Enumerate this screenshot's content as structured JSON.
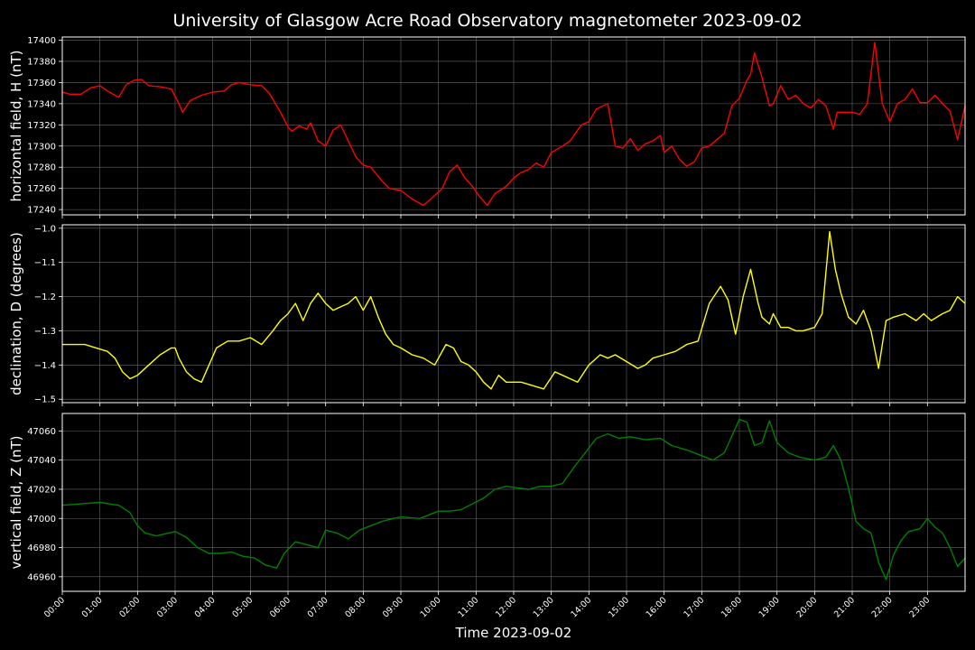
{
  "chart_data": {
    "title": "University of Glasgow Acre Road Observatory magnetometer 2023-09-02",
    "xlabel": "Time 2023-09-02",
    "x_tick_labels": [
      "00:00",
      "01:00",
      "02:00",
      "03:00",
      "04:00",
      "05:00",
      "06:00",
      "07:00",
      "08:00",
      "09:00",
      "10:00",
      "11:00",
      "12:00",
      "13:00",
      "14:00",
      "15:00",
      "16:00",
      "17:00",
      "18:00",
      "19:00",
      "20:00",
      "21:00",
      "22:00",
      "23:00"
    ],
    "x_unit": "hours",
    "xlim": [
      0,
      24
    ],
    "grid": true,
    "background": "#000000",
    "grid_color": "#666666",
    "panels": [
      {
        "type": "line",
        "ylabel": "horizontal field, H (nT)",
        "color": "#ff0000",
        "ylim": [
          17235,
          17403
        ],
        "yticks": [
          17240,
          17260,
          17280,
          17300,
          17320,
          17340,
          17360,
          17380,
          17400
        ],
        "x": [
          0,
          0.2,
          0.5,
          0.75,
          1.0,
          1.2,
          1.5,
          1.7,
          1.9,
          2.1,
          2.3,
          2.6,
          2.9,
          3.1,
          3.2,
          3.4,
          3.7,
          4.0,
          4.3,
          4.5,
          4.7,
          5.0,
          5.3,
          5.5,
          5.8,
          6.0,
          6.1,
          6.3,
          6.5,
          6.6,
          6.8,
          7.0,
          7.2,
          7.4,
          7.6,
          7.8,
          8.0,
          8.2,
          8.5,
          8.7,
          9.0,
          9.3,
          9.6,
          9.8,
          10.1,
          10.3,
          10.5,
          10.7,
          10.9,
          11.1,
          11.3,
          11.5,
          11.8,
          12.0,
          12.2,
          12.4,
          12.6,
          12.8,
          13.0,
          13.3,
          13.5,
          13.8,
          14.0,
          14.2,
          14.5,
          14.7,
          14.9,
          15.1,
          15.3,
          15.5,
          15.7,
          15.9,
          16.0,
          16.2,
          16.4,
          16.6,
          16.8,
          17.0,
          17.2,
          17.4,
          17.6,
          17.8,
          18.0,
          18.2,
          18.3,
          18.4,
          18.6,
          18.8,
          18.9,
          19.1,
          19.3,
          19.5,
          19.7,
          19.9,
          20.1,
          20.3,
          20.5,
          20.6,
          20.8,
          21.0,
          21.2,
          21.4,
          21.6,
          21.8,
          22.0,
          22.2,
          22.4,
          22.6,
          22.8,
          23.0,
          23.2,
          23.4,
          23.6,
          23.8,
          24.0
        ],
        "y": [
          17351,
          17349,
          17349,
          17355,
          17357,
          17352,
          17346,
          17358,
          17362,
          17363,
          17357,
          17356,
          17354,
          17340,
          17332,
          17343,
          17348,
          17351,
          17352,
          17358,
          17360,
          17358,
          17357,
          17350,
          17332,
          17318,
          17314,
          17319,
          17316,
          17322,
          17305,
          17300,
          17315,
          17320,
          17305,
          17290,
          17282,
          17280,
          17267,
          17260,
          17258,
          17250,
          17244,
          17250,
          17260,
          17276,
          17282,
          17270,
          17262,
          17252,
          17244,
          17255,
          17262,
          17270,
          17275,
          17278,
          17284,
          17280,
          17294,
          17300,
          17305,
          17320,
          17323,
          17335,
          17340,
          17300,
          17298,
          17307,
          17296,
          17302,
          17305,
          17310,
          17294,
          17300,
          17288,
          17281,
          17285,
          17298,
          17300,
          17306,
          17312,
          17338,
          17345,
          17362,
          17368,
          17388,
          17365,
          17338,
          17340,
          17357,
          17344,
          17348,
          17340,
          17336,
          17344,
          17338,
          17316,
          17332,
          17332,
          17332,
          17330,
          17340,
          17398,
          17340,
          17323,
          17340,
          17344,
          17354,
          17341,
          17341,
          17348,
          17340,
          17333,
          17306,
          17338
        ]
      },
      {
        "type": "line",
        "ylabel": "declination, D (degrees)",
        "color": "#ffff00",
        "ylim": [
          -1.51,
          -0.99
        ],
        "yticks": [
          -1.5,
          -1.4,
          -1.3,
          -1.2,
          -1.1,
          -1.0
        ],
        "ytick_labels": [
          "−1.5",
          "−1.4",
          "−1.3",
          "−1.2",
          "−1.1",
          "−1.0"
        ],
        "x": [
          0,
          0.3,
          0.6,
          0.9,
          1.2,
          1.4,
          1.6,
          1.8,
          2.0,
          2.3,
          2.6,
          2.9,
          3.0,
          3.1,
          3.3,
          3.5,
          3.7,
          3.9,
          4.1,
          4.4,
          4.7,
          5.0,
          5.3,
          5.6,
          5.8,
          6.0,
          6.2,
          6.4,
          6.6,
          6.8,
          7.0,
          7.2,
          7.4,
          7.6,
          7.8,
          8.0,
          8.2,
          8.4,
          8.6,
          8.8,
          9.0,
          9.3,
          9.6,
          9.9,
          10.2,
          10.4,
          10.6,
          10.8,
          11.0,
          11.2,
          11.4,
          11.6,
          11.8,
          12.0,
          12.2,
          12.5,
          12.8,
          13.1,
          13.3,
          13.5,
          13.7,
          14.0,
          14.3,
          14.5,
          14.7,
          15.0,
          15.3,
          15.5,
          15.7,
          16.0,
          16.3,
          16.6,
          16.9,
          17.2,
          17.5,
          17.7,
          17.9,
          18.1,
          18.3,
          18.5,
          18.6,
          18.8,
          18.9,
          19.1,
          19.3,
          19.5,
          19.7,
          20.0,
          20.2,
          20.4,
          20.55,
          20.7,
          20.9,
          21.1,
          21.3,
          21.5,
          21.7,
          21.9,
          22.1,
          22.4,
          22.7,
          22.9,
          23.1,
          23.4,
          23.6,
          23.8,
          24.0
        ],
        "y": [
          -1.34,
          -1.34,
          -1.34,
          -1.35,
          -1.36,
          -1.38,
          -1.42,
          -1.44,
          -1.43,
          -1.4,
          -1.37,
          -1.35,
          -1.35,
          -1.38,
          -1.42,
          -1.44,
          -1.45,
          -1.4,
          -1.35,
          -1.33,
          -1.33,
          -1.32,
          -1.34,
          -1.3,
          -1.27,
          -1.25,
          -1.22,
          -1.27,
          -1.22,
          -1.19,
          -1.22,
          -1.24,
          -1.23,
          -1.22,
          -1.2,
          -1.24,
          -1.2,
          -1.26,
          -1.31,
          -1.34,
          -1.35,
          -1.37,
          -1.38,
          -1.4,
          -1.34,
          -1.35,
          -1.39,
          -1.4,
          -1.42,
          -1.45,
          -1.47,
          -1.43,
          -1.45,
          -1.45,
          -1.45,
          -1.46,
          -1.47,
          -1.42,
          -1.43,
          -1.44,
          -1.45,
          -1.4,
          -1.37,
          -1.38,
          -1.37,
          -1.39,
          -1.41,
          -1.4,
          -1.38,
          -1.37,
          -1.36,
          -1.34,
          -1.33,
          -1.22,
          -1.17,
          -1.21,
          -1.31,
          -1.2,
          -1.12,
          -1.22,
          -1.26,
          -1.28,
          -1.25,
          -1.29,
          -1.29,
          -1.3,
          -1.3,
          -1.29,
          -1.25,
          -1.01,
          -1.12,
          -1.19,
          -1.26,
          -1.28,
          -1.24,
          -1.3,
          -1.41,
          -1.27,
          -1.26,
          -1.25,
          -1.27,
          -1.25,
          -1.27,
          -1.25,
          -1.24,
          -1.2,
          -1.22
        ]
      },
      {
        "type": "line",
        "ylabel": "vertical field, Z (nT)",
        "color": "#008000",
        "ylim": [
          46950,
          47072
        ],
        "yticks": [
          46960,
          46980,
          47000,
          47020,
          47040,
          47060
        ],
        "x": [
          0,
          0.5,
          1.0,
          1.5,
          1.8,
          2.0,
          2.2,
          2.5,
          3.0,
          3.3,
          3.6,
          3.9,
          4.2,
          4.5,
          4.8,
          5.1,
          5.4,
          5.7,
          5.9,
          6.2,
          6.5,
          6.8,
          7.0,
          7.3,
          7.6,
          7.9,
          8.2,
          8.5,
          8.8,
          9.0,
          9.5,
          10.0,
          10.3,
          10.6,
          10.9,
          11.2,
          11.5,
          11.8,
          12.1,
          12.4,
          12.7,
          13.0,
          13.3,
          13.6,
          13.9,
          14.2,
          14.5,
          14.8,
          15.1,
          15.5,
          15.9,
          16.2,
          16.6,
          17.0,
          17.3,
          17.6,
          18.0,
          18.2,
          18.4,
          18.6,
          18.8,
          19.0,
          19.3,
          19.6,
          20.0,
          20.3,
          20.5,
          20.7,
          20.9,
          21.1,
          21.3,
          21.5,
          21.7,
          21.9,
          22.1,
          22.3,
          22.5,
          22.8,
          23.0,
          23.2,
          23.4,
          23.6,
          23.8,
          24.0
        ],
        "y": [
          47009,
          47010,
          47011,
          47009,
          47004,
          46995,
          46990,
          46988,
          46991,
          46987,
          46980,
          46976,
          46976,
          46977,
          46974,
          46973,
          46968,
          46966,
          46976,
          46984,
          46982,
          46980,
          46992,
          46990,
          46986,
          46992,
          46995,
          46998,
          47000,
          47001,
          47000,
          47005,
          47005,
          47006,
          47010,
          47014,
          47020,
          47022,
          47021,
          47020,
          47022,
          47022,
          47024,
          47035,
          47045,
          47055,
          47058,
          47055,
          47056,
          47054,
          47055,
          47050,
          47047,
          47043,
          47040,
          47045,
          47068,
          47066,
          47050,
          47052,
          47067,
          47052,
          47045,
          47042,
          47040,
          47042,
          47050,
          47040,
          47021,
          46998,
          46993,
          46990,
          46970,
          46958,
          46975,
          46985,
          46991,
          46993,
          47000,
          46994,
          46990,
          46980,
          46967,
          46973
        ]
      }
    ]
  }
}
